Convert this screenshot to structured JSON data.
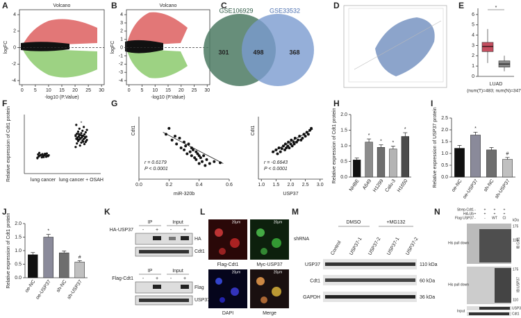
{
  "A": {
    "letter": "A",
    "title": "Volcano",
    "xlabel": "-log10 (P.Value)",
    "ylabel": "logFC",
    "xlim": [
      -1,
      31
    ],
    "ylim": [
      -4.5,
      4.6
    ],
    "xticks": [
      0,
      5,
      10,
      15,
      20,
      25,
      30
    ],
    "yticks": [
      -4,
      -2,
      0,
      2,
      4
    ]
  },
  "B": {
    "letter": "B",
    "title": "Volcano",
    "xlabel": "-log10 (P.Value)",
    "ylabel": "logFC",
    "xlim": [
      -1,
      31
    ],
    "ylim": [
      -4.5,
      4.6
    ],
    "xticks": [
      0,
      5,
      10,
      15,
      20,
      25,
      30
    ],
    "yticks": [
      -4,
      -3,
      -2,
      -1,
      0,
      1,
      2,
      3,
      4
    ]
  },
  "C": {
    "letter": "C",
    "sets": [
      "GSE106929",
      "GSE33532"
    ],
    "counts": [
      301,
      498,
      368
    ]
  },
  "D": {
    "letter": "D"
  },
  "E": {
    "letter": "E",
    "ylim": [
      0,
      6.6
    ],
    "yticks": [
      0,
      1,
      2,
      3,
      4,
      5,
      6
    ],
    "star": "*",
    "category": "LUAD",
    "note": "(num(T)=483; num(N)=347)",
    "boxes": [
      {
        "low": 1.3,
        "q1": 2.4,
        "median": 2.9,
        "q3": 3.3,
        "high": 4.6,
        "color": "#c44e5f"
      },
      {
        "low": 0.5,
        "q1": 0.9,
        "median": 1.2,
        "q3": 1.5,
        "high": 2.0,
        "color": "#888888"
      }
    ]
  },
  "F": {
    "letter": "F",
    "ylabel": "Relative expression of Cdt1 protein",
    "categories": [
      "lung cancer",
      "lung cancer + OSAH"
    ],
    "star": "*",
    "ylim": [
      0,
      2.0
    ],
    "groups": [
      [
        0.52,
        0.55,
        0.57,
        0.58,
        0.6,
        0.6,
        0.61,
        0.62,
        0.62,
        0.63,
        0.64,
        0.65,
        0.66,
        0.68,
        0.7,
        0.56,
        0.59,
        0.63,
        0.67,
        0.54
      ],
      [
        0.9,
        0.95,
        1.0,
        1.02,
        1.05,
        1.07,
        1.1,
        1.12,
        1.14,
        1.15,
        1.17,
        1.18,
        1.2,
        1.21,
        1.22,
        1.23,
        1.25,
        1.26,
        1.28,
        1.3,
        1.31,
        1.33,
        1.35,
        1.37,
        1.4,
        1.42,
        1.45,
        1.48,
        1.52,
        1.58,
        1.65,
        1.19,
        1.24,
        1.16,
        1.29,
        1.11,
        1.34,
        1.08,
        1.27,
        1.2
      ]
    ]
  },
  "G": {
    "letter": "G",
    "left": {
      "xlabel": "miR-320b",
      "ylabel": "Cdt1",
      "r": "r = 0.6179",
      "p": "P < 0.0001",
      "xlim": [
        0,
        0.6
      ],
      "ylim": [
        0.3,
        1.9
      ],
      "xticks": [
        {
          "value": 0,
          "label": "0.0"
        },
        0.2,
        0.4,
        0.6
      ],
      "x": [
        0.18,
        0.2,
        0.22,
        0.24,
        0.25,
        0.27,
        0.28,
        0.3,
        0.3,
        0.31,
        0.32,
        0.33,
        0.34,
        0.35,
        0.35,
        0.36,
        0.37,
        0.38,
        0.38,
        0.39,
        0.4,
        0.4,
        0.41,
        0.42,
        0.43,
        0.44,
        0.45,
        0.47,
        0.5,
        0.54
      ],
      "y": [
        1.45,
        1.6,
        1.3,
        1.4,
        1.2,
        1.35,
        1.1,
        1.25,
        1.05,
        1.15,
        0.95,
        1.2,
        1.0,
        1.1,
        0.9,
        1.05,
        0.85,
        1.0,
        0.8,
        0.95,
        0.7,
        0.9,
        0.85,
        0.75,
        0.9,
        0.65,
        0.8,
        0.7,
        0.75,
        0.72
      ],
      "fit": {
        "x": [
          0.16,
          0.56
        ],
        "y": [
          1.5,
          0.7
        ]
      }
    },
    "right": {
      "xlabel": "USP37",
      "ylabel": "Cdt1",
      "r": "r = -0.6643",
      "p": "P < 0.0001",
      "xlim": [
        0.9,
        3.1
      ],
      "ylim": [
        0.3,
        1.9
      ],
      "xticks": [
        {
          "value": 1,
          "label": "1.0"
        },
        1.5,
        {
          "value": 2,
          "label": "2.0"
        },
        2.5,
        {
          "value": 3,
          "label": "3.0"
        }
      ],
      "x": [
        1.4,
        1.5,
        1.55,
        1.6,
        1.65,
        1.7,
        1.75,
        1.8,
        1.82,
        1.85,
        1.9,
        1.92,
        1.95,
        2.0,
        2.02,
        2.05,
        2.1,
        2.12,
        2.15,
        2.2,
        2.25,
        2.3,
        2.35,
        2.4,
        2.45,
        2.5,
        2.55,
        2.6,
        2.65,
        2.7
      ],
      "y": [
        1.0,
        1.05,
        0.95,
        1.1,
        1.0,
        1.08,
        1.15,
        1.05,
        1.2,
        1.1,
        1.15,
        1.25,
        1.1,
        1.2,
        1.3,
        1.15,
        1.25,
        1.2,
        1.35,
        1.25,
        1.3,
        1.4,
        1.3,
        1.35,
        1.45,
        1.4,
        1.5,
        1.45,
        1.55,
        1.6
      ],
      "fit": {
        "x": [
          1.35,
          2.75
        ],
        "y": [
          0.98,
          1.58
        ]
      }
    }
  },
  "H": {
    "letter": "H",
    "ylabel": "Relative expression of Cdt1 protein",
    "ylim": [
      0,
      2.0
    ],
    "yticks": [
      {
        "value": 0,
        "label": "0.0"
      },
      0.5,
      {
        "value": 1,
        "label": "1.0"
      },
      1.5,
      {
        "value": 2,
        "label": "2.0"
      }
    ],
    "categories": [
      "NHBE",
      "A549",
      "H1299",
      "Calu-3",
      "H1650"
    ],
    "values": [
      0.55,
      1.12,
      0.95,
      0.9,
      1.3
    ],
    "errors": [
      0.06,
      0.1,
      0.08,
      0.09,
      0.12
    ],
    "marks": [
      null,
      "*",
      "*",
      "*",
      "*"
    ],
    "colors": [
      "#111111",
      "#8c8c8c",
      "#6e6e6e",
      "#b4b4b4",
      "#4a4a4a"
    ]
  },
  "I": {
    "letter": "I",
    "ylabel": "Relative expression of USP37 protein",
    "ylim": [
      0,
      2.5
    ],
    "yticks": [
      {
        "value": 0,
        "label": "0.0"
      },
      0.5,
      {
        "value": 1,
        "label": "1.0"
      },
      1.5,
      {
        "value": 2,
        "label": "2.0"
      },
      2.5
    ],
    "categories": [
      "oe-NC",
      "oe-USP37",
      "sh-NC",
      "sh-USP37"
    ],
    "values": [
      1.22,
      1.78,
      1.15,
      0.75
    ],
    "errors": [
      0.12,
      0.12,
      0.1,
      0.08
    ],
    "marks": [
      null,
      "*",
      null,
      "#"
    ],
    "colors": [
      "#111111",
      "#8a8a9a",
      "#6e6e6e",
      "#c0c0c0"
    ]
  },
  "J": {
    "letter": "J",
    "ylabel": "Relative expression of Cdt1 protein",
    "ylim": [
      0,
      2.0
    ],
    "yticks": [
      {
        "value": 0,
        "label": "0.0"
      },
      0.5,
      {
        "value": 1,
        "label": "1.0"
      },
      1.5,
      {
        "value": 2,
        "label": "2.0"
      }
    ],
    "categories": [
      "oe-NC",
      "oe-USP37",
      "sh-NC",
      "sh-USP37"
    ],
    "values": [
      0.85,
      1.5,
      0.92,
      0.58
    ],
    "errors": [
      0.08,
      0.1,
      0.07,
      0.05
    ],
    "marks": [
      null,
      "*",
      null,
      "#"
    ],
    "colors": [
      "#111111",
      "#8a8a9a",
      "#6e6e6e",
      "#c0c0c0"
    ]
  },
  "K": {
    "letter": "K",
    "top": {
      "groups": [
        "IP",
        "Input"
      ],
      "row_label": "HA-USP37",
      "signs": [
        "-",
        "+",
        "-",
        "+"
      ],
      "bands": [
        "HA",
        "Cdt1"
      ]
    },
    "bottom": {
      "groups": [
        "IP",
        "Input"
      ],
      "row_label": "Flag-Cdt1",
      "signs": [
        "-",
        "+",
        "-",
        "+"
      ],
      "bands": [
        "Flag",
        "USP37"
      ]
    }
  },
  "L": {
    "letter": "L",
    "panels": [
      "Flag-Cdt1",
      "Myc-USP37",
      "DAPI",
      "Merge"
    ],
    "scale": "20μm"
  },
  "M": {
    "letter": "M",
    "groups": [
      "DMSO",
      "+MG132"
    ],
    "row_header": "shRNA",
    "lanes": [
      "Control",
      "USP37-1",
      "USP37-2",
      "USP37-1",
      "USP37-2"
    ],
    "bands": [
      "USP37",
      "Cdt1",
      "GAPDH"
    ],
    "sizes": [
      "110 kDa",
      "60 kDa",
      "36 kDa"
    ]
  },
  "N": {
    "letter": "N",
    "rows": [
      "Strep-Cdt1",
      "HA-Ub",
      "Flag USP37"
    ],
    "signs": [
      [
        "-",
        "+",
        "+",
        "+"
      ],
      [
        "+",
        "+",
        "+",
        "+"
      ],
      [
        "-",
        "-",
        "WT",
        "CI"
      ]
    ],
    "kda": "kDa",
    "markers": [
      "175",
      "110"
    ],
    "pulldown": "His pull down",
    "ib": [
      "IB:Cdt1",
      "IB:USP37"
    ],
    "input": "Input",
    "input_bands": [
      "USP37",
      "Cdt1"
    ]
  }
}
